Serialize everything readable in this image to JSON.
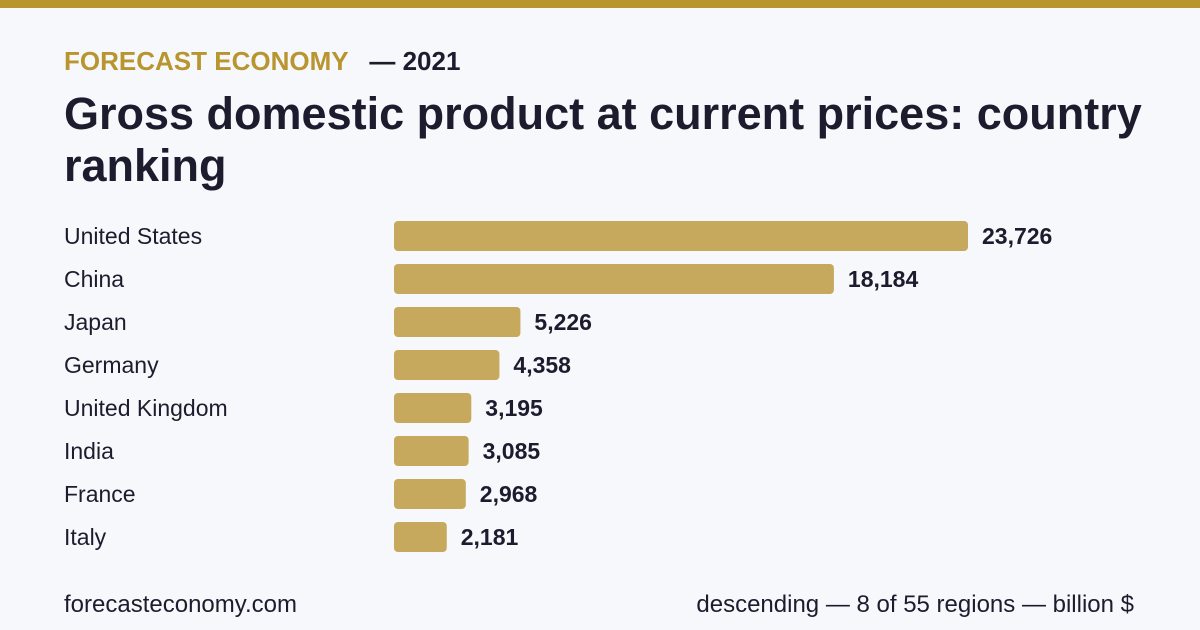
{
  "header": {
    "brand": "FORECAST ECONOMY",
    "year": "— 2021",
    "title": "Gross domestic product at current prices: country ranking"
  },
  "footer": {
    "site": "forecasteconomy.com",
    "note": "descending — 8 of 55 regions — billion $"
  },
  "colors": {
    "accent": "#b8952f",
    "bar": "#c6a95c",
    "text": "#1c1c2e",
    "background": "#f7f8fb"
  },
  "chart_data": {
    "type": "bar",
    "orientation": "horizontal",
    "categories": [
      "United States",
      "China",
      "Japan",
      "Germany",
      "United Kingdom",
      "India",
      "France",
      "Italy"
    ],
    "values": [
      23726,
      18184,
      5226,
      4358,
      3195,
      3085,
      2968,
      2181
    ],
    "value_labels": [
      "23,726",
      "18,184",
      "5,226",
      "4,358",
      "3,195",
      "3,085",
      "2,968",
      "2,181"
    ],
    "title": "Gross domestic product at current prices: country ranking",
    "grid": false
  }
}
